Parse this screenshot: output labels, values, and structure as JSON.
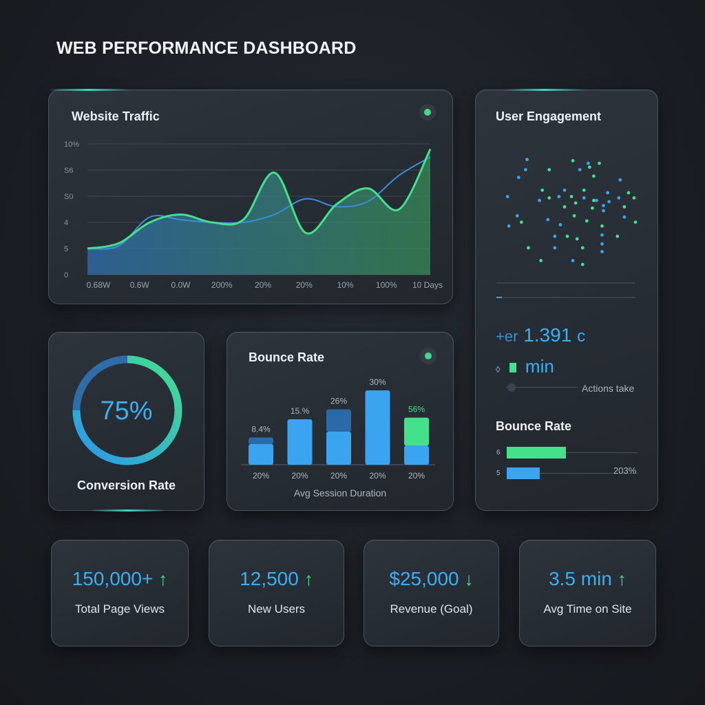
{
  "dashboard": {
    "title": "WEB PERFORMANCE DASHBOARD"
  },
  "colors": {
    "accent_blue": "#3aa4f0",
    "accent_green": "#45e08c",
    "card_bg": "#2a3038"
  },
  "traffic": {
    "title": "Website Traffic",
    "status_icon": "status-dot-icon",
    "chart_data": {
      "type": "area",
      "y_tick_labels": [
        "10%",
        "S6",
        "S0",
        "4",
        "5",
        "0"
      ],
      "x_tick_labels": [
        "0.68W",
        "0.6W",
        "0.0W",
        "200%",
        "20%",
        "20%",
        "10%",
        "100%",
        "10 Days"
      ],
      "series": [
        {
          "values": [
            1.0,
            1.2,
            2.0,
            2.3,
            2.0,
            2.1,
            3.9,
            1.6,
            2.7,
            3.3,
            2.5,
            4.8
          ]
        },
        {
          "values": [
            1.0,
            1.1,
            2.2,
            2.1,
            2.0,
            2.0,
            2.3,
            2.9,
            2.6,
            2.8,
            3.8,
            4.5
          ]
        }
      ],
      "grid": true
    }
  },
  "engagement": {
    "title": "User Engagement",
    "stat_prefix": "+er",
    "stat_value": "1.391",
    "stat_suffix": "c",
    "min_prefix": "◊",
    "min_label": "min",
    "actions_label": "Actions take",
    "bounce_title": "Bounce Rate",
    "bounce_rows": [
      {
        "label": "6",
        "value": 0.45,
        "color": "#45e08c"
      },
      {
        "label": "5",
        "value": 0.25,
        "color": "#3aa4f0"
      }
    ],
    "bounce_value_label": "203%",
    "chart_data": {
      "type": "scatter",
      "points": [
        [
          0.22,
          0.9
        ],
        [
          0.55,
          0.89
        ],
        [
          0.66,
          0.87
        ],
        [
          0.74,
          0.87
        ],
        [
          0.21,
          0.82
        ],
        [
          0.38,
          0.82
        ],
        [
          0.6,
          0.82
        ],
        [
          0.67,
          0.84
        ],
        [
          0.16,
          0.76
        ],
        [
          0.7,
          0.77
        ],
        [
          0.89,
          0.74
        ],
        [
          0.33,
          0.66
        ],
        [
          0.49,
          0.66
        ],
        [
          0.63,
          0.66
        ],
        [
          0.8,
          0.64
        ],
        [
          0.95,
          0.64
        ],
        [
          0.08,
          0.61
        ],
        [
          0.38,
          0.6
        ],
        [
          0.45,
          0.61
        ],
        [
          0.54,
          0.61
        ],
        [
          0.63,
          0.6
        ],
        [
          0.7,
          0.58
        ],
        [
          0.88,
          0.6
        ],
        [
          0.99,
          0.6
        ],
        [
          0.31,
          0.58
        ],
        [
          0.69,
          0.52
        ],
        [
          0.81,
          0.57
        ],
        [
          0.57,
          0.56
        ],
        [
          0.72,
          0.58
        ],
        [
          0.92,
          0.53
        ],
        [
          0.77,
          0.54
        ],
        [
          0.49,
          0.53
        ],
        [
          0.15,
          0.46
        ],
        [
          0.56,
          0.46
        ],
        [
          0.77,
          0.5
        ],
        [
          0.18,
          0.41
        ],
        [
          0.37,
          0.43
        ],
        [
          0.65,
          0.42
        ],
        [
          0.92,
          0.45
        ],
        [
          1.0,
          0.41
        ],
        [
          0.46,
          0.39
        ],
        [
          0.76,
          0.38
        ],
        [
          0.42,
          0.3
        ],
        [
          0.51,
          0.3
        ],
        [
          0.76,
          0.31
        ],
        [
          0.58,
          0.28
        ],
        [
          0.76,
          0.24
        ],
        [
          0.23,
          0.21
        ],
        [
          0.42,
          0.21
        ],
        [
          0.62,
          0.21
        ],
        [
          0.76,
          0.18
        ],
        [
          0.32,
          0.11
        ],
        [
          0.55,
          0.11
        ],
        [
          0.62,
          0.08
        ],
        [
          0.09,
          0.38
        ],
        [
          0.87,
          0.3
        ]
      ],
      "point_colors": [
        "#3aa4f0",
        "#45e08c"
      ]
    }
  },
  "conversion": {
    "value_label": "75%",
    "value": 0.75,
    "label": "Conversion Rate"
  },
  "bounce": {
    "title": "Bounce Rate",
    "subtitle": "Avg Session Duration",
    "status_icon": "status-dot-icon",
    "chart_data": {
      "type": "bar",
      "categories": [
        "20%",
        "20%",
        "20%",
        "20%",
        "20%"
      ],
      "series": [
        {
          "values": [
            2.5,
            5.5,
            4.0,
            9.0,
            2.3
          ],
          "colors": [
            "#3aa4f0",
            "#3aa4f0",
            "#3aa4f0",
            "#3aa4f0",
            "#3aa4f0"
          ]
        },
        {
          "values": [
            0.8,
            0.0,
            2.7,
            0.0,
            3.4
          ],
          "colors": [
            "#2b6aa8",
            "#2b6aa8",
            "#2b6aa8",
            "#2b6aa8",
            "#45e08c"
          ]
        }
      ],
      "data_labels": [
        "8.4%",
        "15.%",
        "26%",
        "30%",
        "56%"
      ],
      "data_label_colors": [
        "#aeb7c0",
        "#aeb7c0",
        "#aeb7c0",
        "#aeb7c0",
        "#45e08c"
      ],
      "ylim": [
        0,
        10
      ]
    }
  },
  "kpis": [
    {
      "value": "150,000+",
      "arrow": "↑",
      "arrow_color": "#45e08c",
      "label": "Total Page Views"
    },
    {
      "value": "12,500",
      "arrow": "↑",
      "arrow_color": "#45e08c",
      "label": "New Users"
    },
    {
      "value": "$25,000",
      "arrow": "↓",
      "arrow_color": "#45e08c",
      "label": "Revenue (Goal)"
    },
    {
      "value": "3.5 min",
      "arrow": "↑",
      "arrow_color": "#45e08c",
      "label": "Avg Time on Site"
    }
  ]
}
